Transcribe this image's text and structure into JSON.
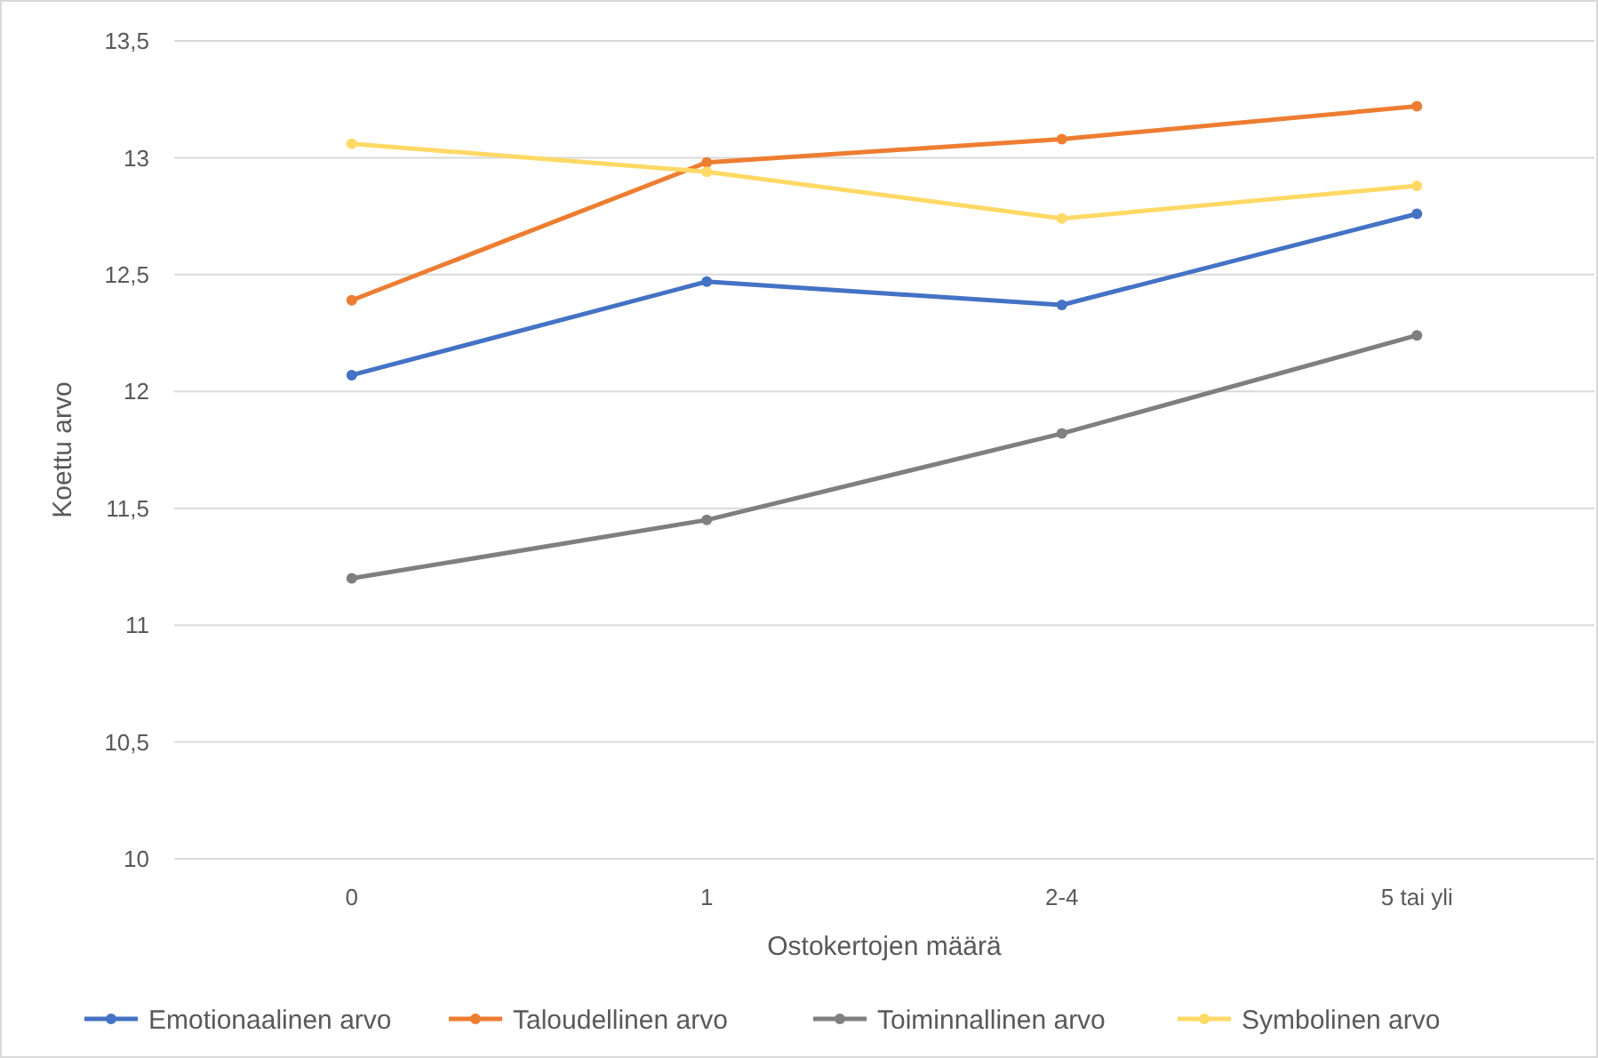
{
  "chart_data": {
    "type": "line",
    "xlabel": "Ostokertojen määrä",
    "ylabel": "Koettu arvo",
    "categories": [
      "0",
      "1",
      "2-4",
      "5 tai yli"
    ],
    "series": [
      {
        "name": "Emotionaalinen arvo",
        "color": "#4472c4",
        "values": [
          12.07,
          12.47,
          12.37,
          12.76
        ]
      },
      {
        "name": "Taloudellinen arvo",
        "color": "#ed7d31",
        "values": [
          12.39,
          12.98,
          13.08,
          13.22
        ]
      },
      {
        "name": "Toiminnallinen arvo",
        "color": "#7f7f7f",
        "values": [
          11.2,
          11.45,
          11.82,
          12.24
        ]
      },
      {
        "name": "Symbolinen arvo",
        "color": "#ffd966",
        "values": [
          13.06,
          12.94,
          12.74,
          12.88
        ]
      }
    ],
    "ylim": [
      10,
      13.5
    ],
    "yticks": [
      10,
      {
        "value": 10.5,
        "label": "10,5"
      },
      11,
      {
        "value": 11.5,
        "label": "11,5"
      },
      12,
      {
        "value": 12.5,
        "label": "12,5"
      },
      13,
      {
        "value": 13.5,
        "label": "13,5"
      }
    ],
    "grid": "y",
    "legend": "bottom",
    "marker": "circle",
    "line_style": "solid"
  }
}
